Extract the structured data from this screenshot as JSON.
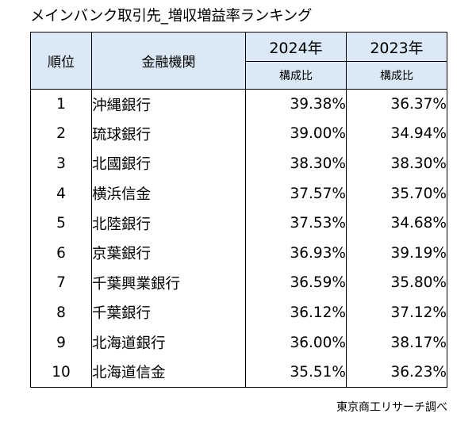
{
  "title": "メインバンク取引先_増収増益率ランキング",
  "table": {
    "header": {
      "rank": "順位",
      "bank": "金融機関",
      "year_2024": "2024年",
      "year_2023": "2023年",
      "sub_2024": "構成比",
      "sub_2023": "構成比"
    },
    "rows": [
      {
        "rank": "1",
        "bank": "沖縄銀行",
        "v2024": "39.38%",
        "v2023": "36.37%"
      },
      {
        "rank": "2",
        "bank": "琉球銀行",
        "v2024": "39.00%",
        "v2023": "34.94%"
      },
      {
        "rank": "3",
        "bank": "北國銀行",
        "v2024": "38.30%",
        "v2023": "38.30%"
      },
      {
        "rank": "4",
        "bank": "横浜信金",
        "v2024": "37.57%",
        "v2023": "35.70%"
      },
      {
        "rank": "5",
        "bank": "北陸銀行",
        "v2024": "37.53%",
        "v2023": "34.68%"
      },
      {
        "rank": "6",
        "bank": "京葉銀行",
        "v2024": "36.93%",
        "v2023": "39.19%"
      },
      {
        "rank": "7",
        "bank": "千葉興業銀行",
        "v2024": "36.59%",
        "v2023": "35.80%"
      },
      {
        "rank": "8",
        "bank": "千葉銀行",
        "v2024": "36.12%",
        "v2023": "37.12%"
      },
      {
        "rank": "9",
        "bank": "北海道銀行",
        "v2024": "36.00%",
        "v2023": "38.17%"
      },
      {
        "rank": "10",
        "bank": "北海道信金",
        "v2024": "35.51%",
        "v2023": "36.23%"
      }
    ]
  },
  "source": "東京商工リサーチ調べ",
  "colors": {
    "header_bg": "#dbe9f6",
    "border": "#000000",
    "text": "#000000"
  }
}
